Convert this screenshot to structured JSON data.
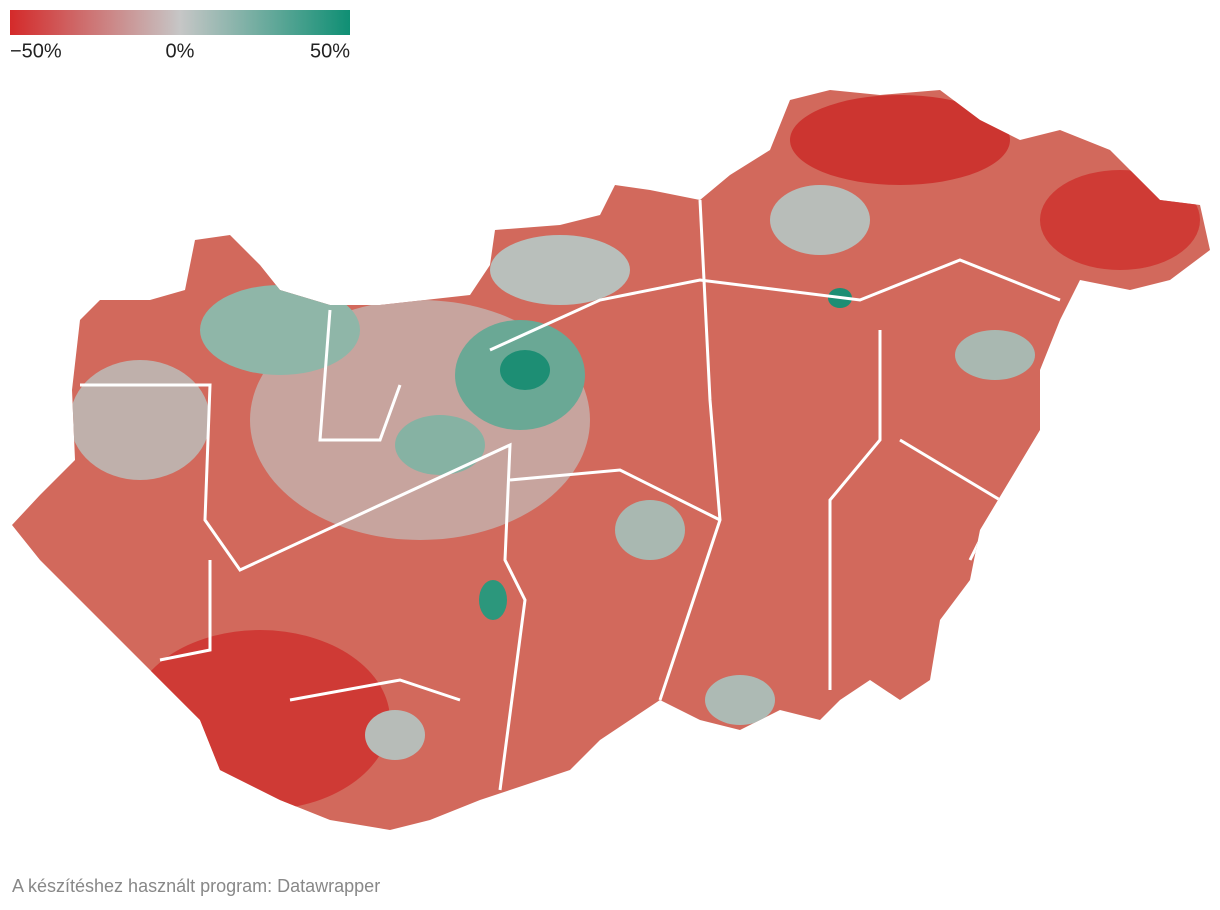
{
  "legend": {
    "range": [
      -50,
      50
    ],
    "colors": [
      "#d42a2a",
      "#c6c6c6",
      "#0f8f74"
    ],
    "ticks": [
      {
        "value": -50,
        "label": "−50%"
      },
      {
        "value": 0,
        "label": "0%"
      },
      {
        "value": 50,
        "label": "50%"
      }
    ]
  },
  "footer": "A készítéshez használt program: Datawrapper"
}
